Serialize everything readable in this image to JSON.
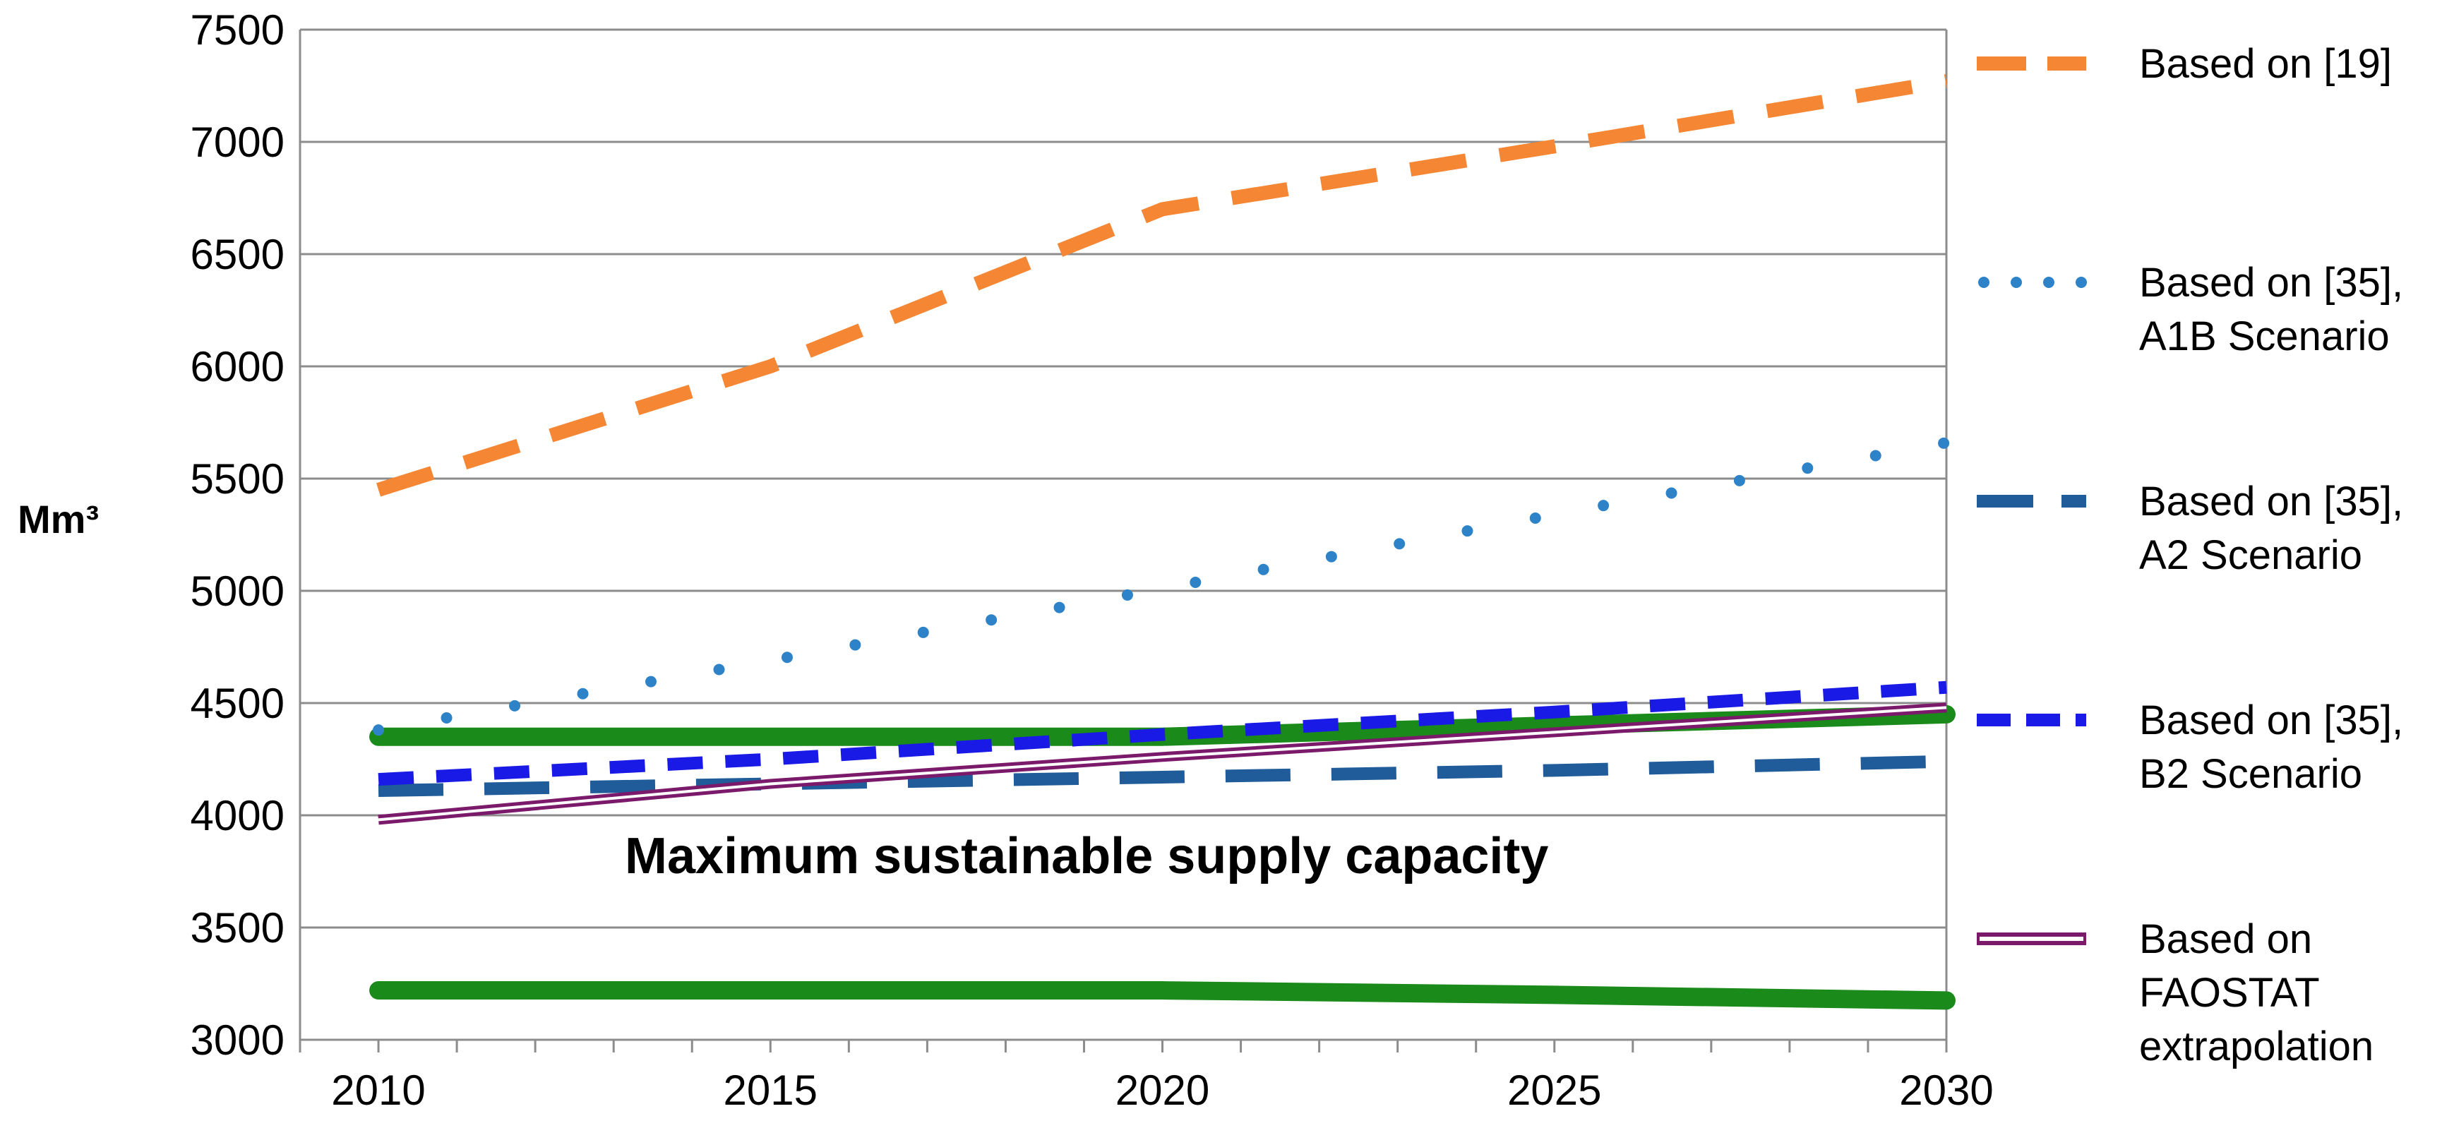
{
  "chart_data": {
    "type": "line",
    "title": "",
    "xlabel": "",
    "ylabel": "Mm³",
    "x": [
      2010,
      2015,
      2020,
      2025,
      2030
    ],
    "xlim": [
      2009,
      2030
    ],
    "ylim": [
      3000,
      7500
    ],
    "x_ticks": [
      "2010",
      "2015",
      "2020",
      "2025",
      "2030"
    ],
    "y_ticks": [
      "3000",
      "3500",
      "4000",
      "4500",
      "5000",
      "5500",
      "6000",
      "6500",
      "7000",
      "7500"
    ],
    "grid": "horizontal",
    "legend_position": "right",
    "series": [
      {
        "name": "Based on [19]",
        "style": "dashed",
        "color": "#F58634",
        "values": [
          5450,
          6000,
          6700,
          6980,
          7270
        ]
      },
      {
        "name": "Based on [35], A1B Scenario",
        "style": "dotted",
        "color": "#2E83C8",
        "values": [
          4380,
          4690,
          5010,
          5340,
          5660
        ]
      },
      {
        "name": "Based on [35], A2 Scenario",
        "style": "long-dashed",
        "color": "#1F5C99",
        "values": [
          4110,
          4140,
          4170,
          4200,
          4240
        ]
      },
      {
        "name": "Based on [35], B2 Scenario",
        "style": "short-dashed",
        "color": "#1A1AE6",
        "values": [
          4160,
          4250,
          4360,
          4460,
          4570
        ]
      },
      {
        "name": "Based on FAOSTAT extrapolation",
        "style": "double-line",
        "color": "#7B1A6A",
        "values": [
          3980,
          4140,
          4260,
          4370,
          4480
        ]
      }
    ],
    "capacity_lines": [
      {
        "name": "Maximum sustainable supply capacity (upper)",
        "color": "#1A8A1A",
        "values": [
          4350,
          4350,
          4350,
          4400,
          4450
        ]
      },
      {
        "name": "Maximum sustainable supply capacity (lower)",
        "color": "#1A8A1A",
        "values": [
          3220,
          3220,
          3220,
          3200,
          3175
        ]
      }
    ],
    "annotations": [
      "Maximum sustainable supply capacity"
    ],
    "legend_entries": [
      {
        "lines": [
          "Based on [19]"
        ]
      },
      {
        "lines": [
          "Based on [35],",
          "A1B Scenario"
        ]
      },
      {
        "lines": [
          "Based on [35],",
          "A2 Scenario"
        ]
      },
      {
        "lines": [
          "Based on [35],",
          "B2 Scenario"
        ]
      },
      {
        "lines": [
          "Based on",
          "FAOSTAT",
          "extrapolation"
        ]
      }
    ]
  }
}
